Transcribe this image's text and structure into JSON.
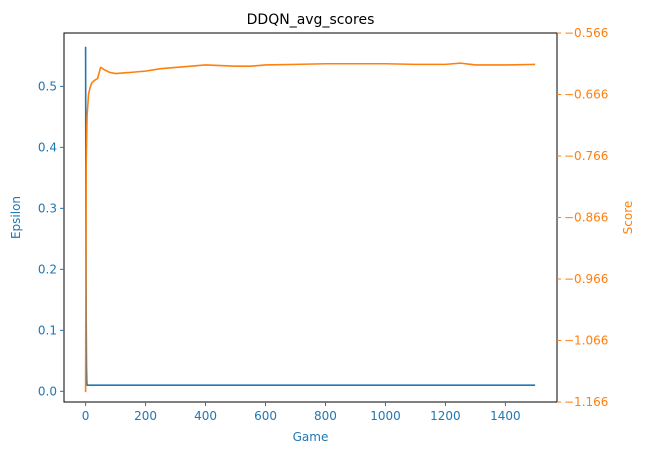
{
  "chart_data": {
    "type": "line",
    "title": "DDQN_avg_scores",
    "xlabel": "Game",
    "ylabel_left": "Epsilon",
    "ylabel_right": "Score",
    "x_ticks": [
      0,
      200,
      400,
      600,
      800,
      1000,
      1200,
      1400
    ],
    "left_ticks": [
      0.0,
      0.1,
      0.2,
      0.3,
      0.4,
      0.5
    ],
    "left_tick_labels": [
      "0.0",
      "0.1",
      "0.2",
      "0.3",
      "0.4",
      "0.5"
    ],
    "right_ticks": [
      -1.166,
      -1.066,
      -0.966,
      -0.866,
      -0.766,
      -0.666,
      -0.566
    ],
    "right_tick_labels": [
      "−1.166",
      "−1.066",
      "−0.966",
      "−0.866",
      "−0.766",
      "−0.666",
      "−0.566"
    ],
    "xlim": [
      -72,
      1572
    ],
    "ylim_left": [
      -0.0175,
      0.5875
    ],
    "ylim_right": [
      -1.166,
      -0.566
    ],
    "grid": false,
    "legend": false,
    "colors": {
      "left_axis": "#1f77b4",
      "right_axis": "#ff7f0e",
      "frame": "#000000"
    },
    "series": [
      {
        "axis": "left",
        "color": "#1f77b4",
        "x": [
          0,
          1,
          2,
          3,
          4,
          5,
          10,
          50,
          100,
          200,
          400,
          600,
          800,
          1000,
          1200,
          1400,
          1499
        ],
        "values": [
          0.565,
          0.3,
          0.12,
          0.04,
          0.015,
          0.01,
          0.01,
          0.01,
          0.01,
          0.01,
          0.01,
          0.01,
          0.01,
          0.01,
          0.01,
          0.01,
          0.01
        ]
      },
      {
        "axis": "right",
        "color": "#ff7f0e",
        "x": [
          0,
          2,
          5,
          10,
          15,
          20,
          25,
          30,
          40,
          50,
          55,
          60,
          80,
          100,
          150,
          200,
          250,
          300,
          350,
          400,
          450,
          500,
          550,
          600,
          700,
          800,
          900,
          1000,
          1100,
          1200,
          1250,
          1300,
          1400,
          1499
        ],
        "values": [
          -1.15,
          -0.78,
          -0.7,
          -0.665,
          -0.655,
          -0.648,
          -0.645,
          -0.643,
          -0.64,
          -0.622,
          -0.623,
          -0.625,
          -0.63,
          -0.632,
          -0.63,
          -0.628,
          -0.624,
          -0.622,
          -0.62,
          -0.618,
          -0.619,
          -0.62,
          -0.62,
          -0.618,
          -0.617,
          -0.616,
          -0.616,
          -0.616,
          -0.617,
          -0.617,
          -0.615,
          -0.618,
          -0.618,
          -0.617
        ]
      }
    ]
  }
}
